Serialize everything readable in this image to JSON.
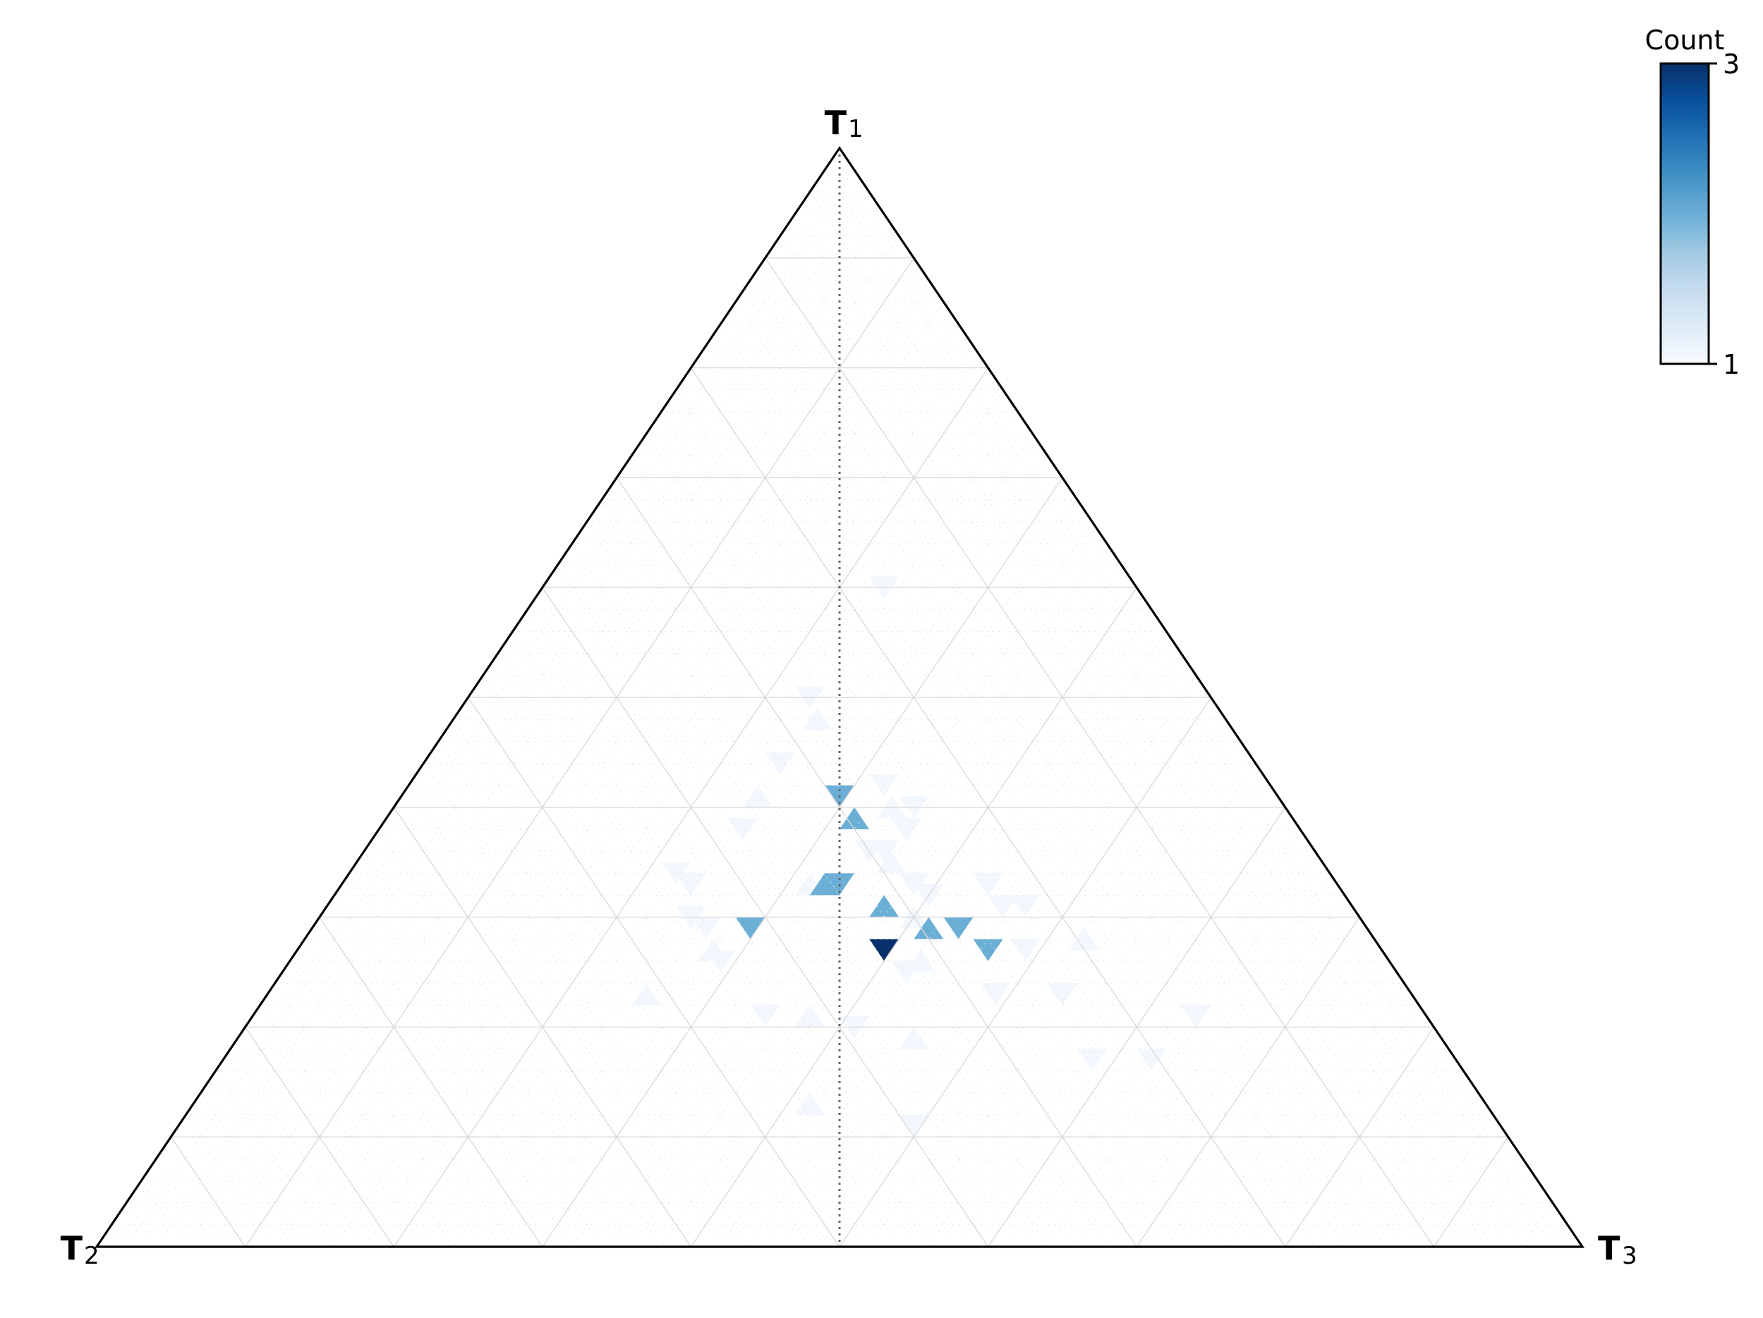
{
  "chart_data": {
    "type": "heatmap",
    "subtype": "ternary-triangular-histogram",
    "vertices": [
      {
        "name": "T",
        "sub": "1",
        "position": "top"
      },
      {
        "name": "T",
        "sub": "2",
        "position": "bottom-left"
      },
      {
        "name": "T",
        "sub": "3",
        "position": "bottom-right"
      }
    ],
    "grid_divisions": 10,
    "fine_grid": true,
    "bins_per_side": 50,
    "colorbar": {
      "label": "Count",
      "min": 1,
      "max": 3,
      "ticks": [
        "1",
        "3"
      ],
      "colormap": [
        "#f7fbff",
        "#deebf7",
        "#c6dbef",
        "#9ecae1",
        "#6baed6",
        "#4292c6",
        "#2171b5",
        "#08519c",
        "#08306b"
      ]
    },
    "reference_line": {
      "description": "dotted median line T2 = T3",
      "color": "#666666"
    },
    "cells": [
      {
        "t1": 0.6,
        "lr": 0.06,
        "count": 1
      },
      {
        "t1": 0.5,
        "lr": -0.04,
        "count": 1
      },
      {
        "t1": 0.48,
        "lr": -0.03,
        "count": 1
      },
      {
        "t1": 0.44,
        "lr": -0.08,
        "count": 1
      },
      {
        "t1": 0.42,
        "lr": 0.06,
        "count": 1
      },
      {
        "t1": 0.4,
        "lr": 0.07,
        "count": 1
      },
      {
        "t1": 0.4,
        "lr": 0.1,
        "count": 1
      },
      {
        "t1": 0.38,
        "lr": 0.09,
        "count": 1
      },
      {
        "t1": 0.41,
        "lr": -0.11,
        "count": 1
      },
      {
        "t1": 0.38,
        "lr": -0.13,
        "count": 1
      },
      {
        "t1": 0.41,
        "lr": 0.0,
        "count": 2
      },
      {
        "t1": 0.39,
        "lr": 0.02,
        "count": 2
      },
      {
        "t1": 0.36,
        "lr": 0.04,
        "count": 1
      },
      {
        "t1": 0.36,
        "lr": 0.06,
        "count": 1
      },
      {
        "t1": 0.35,
        "lr": 0.07,
        "count": 1
      },
      {
        "t1": 0.34,
        "lr": -0.22,
        "count": 1
      },
      {
        "t1": 0.33,
        "lr": -0.2,
        "count": 1
      },
      {
        "t1": 0.33,
        "lr": -0.04,
        "count": 1
      },
      {
        "t1": 0.33,
        "lr": 0.1,
        "count": 1
      },
      {
        "t1": 0.33,
        "lr": 0.2,
        "count": 1
      },
      {
        "t1": 0.33,
        "lr": -0.02,
        "count": 2
      },
      {
        "t1": 0.33,
        "lr": 0.0,
        "count": 2
      },
      {
        "t1": 0.32,
        "lr": 0.12,
        "count": 1
      },
      {
        "t1": 0.31,
        "lr": 0.06,
        "count": 2
      },
      {
        "t1": 0.31,
        "lr": 0.22,
        "count": 1
      },
      {
        "t1": 0.31,
        "lr": 0.25,
        "count": 1
      },
      {
        "t1": 0.3,
        "lr": 0.1,
        "count": 1
      },
      {
        "t1": 0.3,
        "lr": -0.2,
        "count": 1
      },
      {
        "t1": 0.29,
        "lr": -0.12,
        "count": 2
      },
      {
        "t1": 0.29,
        "lr": 0.12,
        "count": 2
      },
      {
        "t1": 0.29,
        "lr": 0.16,
        "count": 2
      },
      {
        "t1": 0.29,
        "lr": -0.18,
        "count": 1
      },
      {
        "t1": 0.28,
        "lr": 0.33,
        "count": 1
      },
      {
        "t1": 0.27,
        "lr": 0.06,
        "count": 3
      },
      {
        "t1": 0.27,
        "lr": 0.2,
        "count": 2
      },
      {
        "t1": 0.27,
        "lr": -0.17,
        "count": 1
      },
      {
        "t1": 0.27,
        "lr": 0.25,
        "count": 1
      },
      {
        "t1": 0.26,
        "lr": -0.16,
        "count": 1
      },
      {
        "t1": 0.26,
        "lr": 0.11,
        "count": 1
      },
      {
        "t1": 0.25,
        "lr": 0.09,
        "count": 1
      },
      {
        "t1": 0.23,
        "lr": 0.21,
        "count": 1
      },
      {
        "t1": 0.23,
        "lr": -0.26,
        "count": 1
      },
      {
        "t1": 0.23,
        "lr": 0.3,
        "count": 1
      },
      {
        "t1": 0.21,
        "lr": -0.1,
        "count": 1
      },
      {
        "t1": 0.21,
        "lr": -0.04,
        "count": 1
      },
      {
        "t1": 0.21,
        "lr": 0.48,
        "count": 1
      },
      {
        "t1": 0.2,
        "lr": 0.02,
        "count": 1
      },
      {
        "t1": 0.19,
        "lr": 0.1,
        "count": 1
      },
      {
        "t1": 0.17,
        "lr": 0.34,
        "count": 1
      },
      {
        "t1": 0.17,
        "lr": 0.42,
        "count": 1
      },
      {
        "t1": 0.13,
        "lr": -0.04,
        "count": 1
      },
      {
        "t1": 0.11,
        "lr": 0.1,
        "count": 1
      }
    ]
  }
}
